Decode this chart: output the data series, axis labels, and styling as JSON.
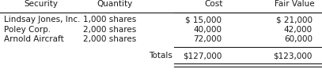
{
  "col_headers": [
    "Security",
    "Quantity",
    "Cost",
    "Fair Value"
  ],
  "rows": [
    [
      "Lindsay Jones, Inc.",
      "1,000 shares",
      "$ 15,000",
      "$ 21,000"
    ],
    [
      "Poley Corp.",
      "2,000 shares",
      "40,000",
      "42,000"
    ],
    [
      "Arnold Aircraft",
      "2,000 shares",
      "72,000",
      "60,000"
    ]
  ],
  "totals_label": "Totals",
  "totals_cost": "$127,000",
  "totals_fv": "$123,000",
  "background_color": "#ffffff",
  "text_color": "#1a1a1a",
  "font_size": 7.5
}
